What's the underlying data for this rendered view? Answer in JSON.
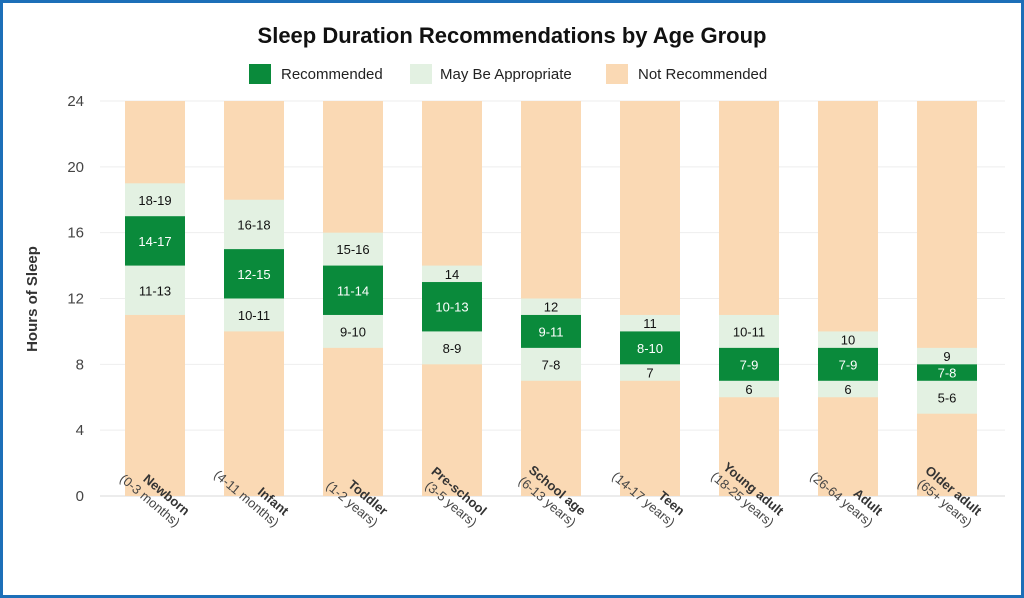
{
  "chart_data": {
    "type": "bar",
    "title": "Sleep Duration Recommendations by Age Group",
    "ylabel": "Hours of Sleep",
    "ylim": [
      0,
      24
    ],
    "yticks": [
      0,
      4,
      8,
      12,
      16,
      20,
      24
    ],
    "grid": true,
    "legend_position": "top-center",
    "legend": [
      {
        "key": "recommended",
        "label": "Recommended",
        "color": "#0a8a3b"
      },
      {
        "key": "appropriate",
        "label": "May Be Appropriate",
        "color": "#e3f1e2"
      },
      {
        "key": "not",
        "label": "Not Recommended",
        "color": "#fad9b4"
      }
    ],
    "categories": [
      {
        "name": "Newborn",
        "sub": "(0-3 months)",
        "recommended": [
          14,
          17
        ],
        "appropriate_low": [
          11,
          13
        ],
        "appropriate_high": [
          18,
          19
        ],
        "labels": {
          "high": "18-19",
          "rec": "14-17",
          "low": "11-13"
        }
      },
      {
        "name": "Infant",
        "sub": "(4-11 months)",
        "recommended": [
          12,
          15
        ],
        "appropriate_low": [
          10,
          11
        ],
        "appropriate_high": [
          16,
          18
        ],
        "labels": {
          "high": "16-18",
          "rec": "12-15",
          "low": "10-11"
        }
      },
      {
        "name": "Toddler",
        "sub": "(1-2 years)",
        "recommended": [
          11,
          14
        ],
        "appropriate_low": [
          9,
          10
        ],
        "appropriate_high": [
          15,
          16
        ],
        "labels": {
          "high": "15-16",
          "rec": "11-14",
          "low": "9-10"
        }
      },
      {
        "name": "Pre-school",
        "sub": "(3-5 years)",
        "recommended": [
          10,
          13
        ],
        "appropriate_low": [
          8,
          9
        ],
        "appropriate_high": [
          14,
          14
        ],
        "labels": {
          "high": "14",
          "rec": "10-13",
          "low": "8-9"
        }
      },
      {
        "name": "School age",
        "sub": "(6-13 years)",
        "recommended": [
          9,
          11
        ],
        "appropriate_low": [
          7,
          8
        ],
        "appropriate_high": [
          12,
          12
        ],
        "labels": {
          "high": "12",
          "rec": "9-11",
          "low": "7-8"
        }
      },
      {
        "name": "Teen",
        "sub": "(14-17 years)",
        "recommended": [
          8,
          10
        ],
        "appropriate_low": [
          7,
          7
        ],
        "appropriate_high": [
          11,
          11
        ],
        "labels": {
          "high": "11",
          "rec": "8-10",
          "low": "7"
        }
      },
      {
        "name": "Young adult",
        "sub": "(18-25 years)",
        "recommended": [
          7,
          9
        ],
        "appropriate_low": [
          6,
          6
        ],
        "appropriate_high": [
          10,
          11
        ],
        "labels": {
          "high": "10-11",
          "rec": "7-9",
          "low": "6"
        }
      },
      {
        "name": "Adult",
        "sub": "(26-64 years)",
        "recommended": [
          7,
          9
        ],
        "appropriate_low": [
          6,
          6
        ],
        "appropriate_high": [
          10,
          10
        ],
        "labels": {
          "high": "10",
          "rec": "7-9",
          "low": "6"
        }
      },
      {
        "name": "Older adult",
        "sub": "(65+ years)",
        "recommended": [
          7,
          8
        ],
        "appropriate_low": [
          5,
          6
        ],
        "appropriate_high": [
          9,
          9
        ],
        "labels": {
          "high": "9",
          "rec": "7-8",
          "low": "5-6"
        }
      }
    ]
  }
}
